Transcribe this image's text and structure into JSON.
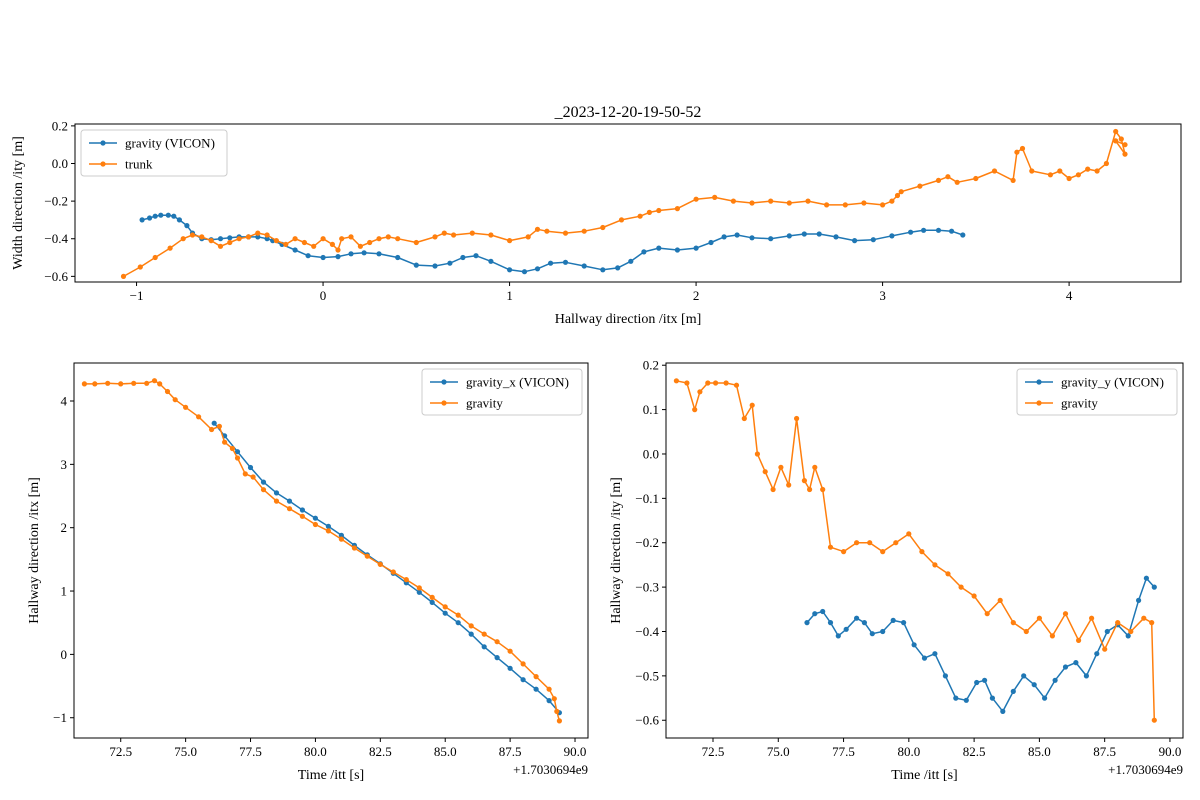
{
  "figure": {
    "suptitle": ""
  },
  "colors": {
    "series_blue": "#1f77b4",
    "series_orange": "#ff7f0e",
    "axis": "#000000"
  },
  "chart_data": [
    {
      "id": "top",
      "type": "line",
      "title": "_2023-12-20-19-50-52",
      "xlabel": "Hallway direction /itx [m]",
      "ylabel": "Width direction /ity [m]",
      "xlim": [
        -1.33,
        4.6
      ],
      "ylim": [
        -0.63,
        0.21
      ],
      "xticks": [
        -1,
        0,
        1,
        2,
        3,
        4
      ],
      "xticklabels": [
        "−1",
        "0",
        "1",
        "2",
        "3",
        "4"
      ],
      "yticks": [
        -0.6,
        -0.4,
        -0.2,
        0.0,
        0.2
      ],
      "yticklabels": [
        "−0.6",
        "−0.4",
        "−0.2",
        "0.0",
        "0.2"
      ],
      "offset_text": "",
      "legend": {
        "placement": "upper-left",
        "entries": [
          "gravity (VICON)",
          "trunk"
        ]
      },
      "series": [
        {
          "name": "gravity (VICON)",
          "color": "#1f77b4",
          "x": [
            -0.97,
            -0.93,
            -0.9,
            -0.87,
            -0.83,
            -0.8,
            -0.77,
            -0.73,
            -0.7,
            -0.65,
            -0.6,
            -0.55,
            -0.5,
            -0.45,
            -0.4,
            -0.35,
            -0.3,
            -0.27,
            -0.22,
            -0.15,
            -0.08,
            0.0,
            0.08,
            0.15,
            0.22,
            0.3,
            0.4,
            0.5,
            0.6,
            0.68,
            0.75,
            0.82,
            0.9,
            1.0,
            1.08,
            1.15,
            1.22,
            1.3,
            1.4,
            1.5,
            1.58,
            1.65,
            1.72,
            1.8,
            1.9,
            2.0,
            2.08,
            2.15,
            2.22,
            2.3,
            2.4,
            2.5,
            2.58,
            2.66,
            2.75,
            2.85,
            2.95,
            3.05,
            3.15,
            3.22,
            3.3,
            3.37,
            3.43
          ],
          "y": [
            -0.3,
            -0.29,
            -0.28,
            -0.275,
            -0.275,
            -0.28,
            -0.3,
            -0.33,
            -0.37,
            -0.4,
            -0.405,
            -0.4,
            -0.395,
            -0.39,
            -0.39,
            -0.39,
            -0.4,
            -0.41,
            -0.43,
            -0.46,
            -0.49,
            -0.5,
            -0.495,
            -0.48,
            -0.475,
            -0.48,
            -0.5,
            -0.54,
            -0.545,
            -0.53,
            -0.5,
            -0.49,
            -0.52,
            -0.565,
            -0.575,
            -0.56,
            -0.53,
            -0.525,
            -0.545,
            -0.565,
            -0.555,
            -0.52,
            -0.47,
            -0.45,
            -0.46,
            -0.45,
            -0.42,
            -0.39,
            -0.38,
            -0.395,
            -0.4,
            -0.385,
            -0.375,
            -0.375,
            -0.39,
            -0.41,
            -0.405,
            -0.385,
            -0.365,
            -0.355,
            -0.355,
            -0.36,
            -0.38
          ]
        },
        {
          "name": "trunk",
          "color": "#ff7f0e",
          "x": [
            -1.07,
            -0.98,
            -0.9,
            -0.82,
            -0.75,
            -0.7,
            -0.65,
            -0.6,
            -0.55,
            -0.5,
            -0.45,
            -0.4,
            -0.35,
            -0.3,
            -0.25,
            -0.2,
            -0.15,
            -0.1,
            -0.05,
            0.0,
            0.05,
            0.08,
            0.1,
            0.15,
            0.2,
            0.25,
            0.3,
            0.35,
            0.4,
            0.5,
            0.6,
            0.65,
            0.7,
            0.8,
            0.9,
            1.0,
            1.1,
            1.15,
            1.2,
            1.3,
            1.4,
            1.5,
            1.6,
            1.7,
            1.75,
            1.8,
            1.9,
            2.0,
            2.1,
            2.2,
            2.3,
            2.4,
            2.5,
            2.6,
            2.7,
            2.8,
            2.9,
            3.0,
            3.05,
            3.08,
            3.1,
            3.2,
            3.3,
            3.35,
            3.4,
            3.5,
            3.6,
            3.7,
            3.72,
            3.75,
            3.8,
            3.9,
            3.95,
            4.0,
            4.05,
            4.1,
            4.15,
            4.2,
            4.25,
            4.28,
            4.3,
            4.25,
            4.3
          ],
          "y": [
            -0.6,
            -0.55,
            -0.5,
            -0.45,
            -0.4,
            -0.38,
            -0.39,
            -0.41,
            -0.44,
            -0.42,
            -0.4,
            -0.39,
            -0.37,
            -0.38,
            -0.41,
            -0.43,
            -0.4,
            -0.42,
            -0.44,
            -0.4,
            -0.43,
            -0.46,
            -0.4,
            -0.39,
            -0.44,
            -0.42,
            -0.4,
            -0.39,
            -0.4,
            -0.42,
            -0.39,
            -0.37,
            -0.38,
            -0.37,
            -0.38,
            -0.41,
            -0.39,
            -0.35,
            -0.36,
            -0.37,
            -0.36,
            -0.34,
            -0.3,
            -0.28,
            -0.26,
            -0.25,
            -0.24,
            -0.19,
            -0.18,
            -0.2,
            -0.21,
            -0.2,
            -0.21,
            -0.2,
            -0.22,
            -0.22,
            -0.21,
            -0.22,
            -0.2,
            -0.17,
            -0.15,
            -0.12,
            -0.09,
            -0.07,
            -0.1,
            -0.08,
            -0.04,
            -0.09,
            0.06,
            0.08,
            -0.04,
            -0.06,
            -0.04,
            -0.08,
            -0.06,
            -0.03,
            -0.04,
            0.0,
            0.17,
            0.13,
            0.05,
            0.12,
            0.1
          ]
        }
      ]
    },
    {
      "id": "bottom-left",
      "type": "line",
      "title": "",
      "xlabel": "Time /itt [s]",
      "ylabel": "Hallway direction /itx [m]",
      "xlim": [
        70.7,
        90.5
      ],
      "ylim": [
        -1.32,
        4.6
      ],
      "xticks": [
        72.5,
        75.0,
        77.5,
        80.0,
        82.5,
        85.0,
        87.5,
        90.0
      ],
      "xticklabels": [
        "72.5",
        "75.0",
        "77.5",
        "80.0",
        "82.5",
        "85.0",
        "87.5",
        "90.0"
      ],
      "yticks": [
        -1,
        0,
        1,
        2,
        3,
        4
      ],
      "yticklabels": [
        "−1",
        "0",
        "1",
        "2",
        "3",
        "4"
      ],
      "offset_text": "+1.7030694e9",
      "legend": {
        "placement": "upper-right",
        "entries": [
          "gravity_x (VICON)",
          "gravity"
        ]
      },
      "series": [
        {
          "name": "gravity_x (VICON)",
          "color": "#1f77b4",
          "x": [
            76.1,
            76.5,
            77.0,
            77.5,
            78.0,
            78.5,
            79.0,
            79.5,
            80.0,
            80.5,
            81.0,
            81.5,
            82.0,
            82.5,
            83.0,
            83.5,
            84.0,
            84.5,
            85.0,
            85.5,
            86.0,
            86.5,
            87.0,
            87.5,
            88.0,
            88.5,
            89.0,
            89.4
          ],
          "y": [
            3.65,
            3.45,
            3.2,
            2.95,
            2.72,
            2.55,
            2.42,
            2.28,
            2.15,
            2.02,
            1.88,
            1.72,
            1.57,
            1.43,
            1.28,
            1.13,
            0.98,
            0.82,
            0.65,
            0.5,
            0.32,
            0.12,
            -0.05,
            -0.22,
            -0.4,
            -0.55,
            -0.73,
            -0.92
          ]
        },
        {
          "name": "gravity",
          "color": "#ff7f0e",
          "x": [
            71.1,
            71.5,
            72.0,
            72.5,
            73.0,
            73.5,
            73.8,
            74.0,
            74.3,
            74.6,
            75.0,
            75.5,
            76.0,
            76.3,
            76.5,
            76.8,
            77.0,
            77.3,
            77.6,
            78.0,
            78.5,
            79.0,
            79.5,
            80.0,
            80.5,
            81.0,
            81.5,
            82.0,
            82.5,
            83.0,
            83.5,
            84.0,
            84.5,
            85.0,
            85.5,
            86.0,
            86.5,
            87.0,
            87.5,
            88.0,
            88.5,
            89.0,
            89.2,
            89.3,
            89.4
          ],
          "y": [
            4.27,
            4.27,
            4.28,
            4.27,
            4.28,
            4.28,
            4.32,
            4.27,
            4.15,
            4.02,
            3.9,
            3.75,
            3.55,
            3.6,
            3.35,
            3.25,
            3.1,
            2.85,
            2.8,
            2.6,
            2.42,
            2.3,
            2.18,
            2.05,
            1.95,
            1.82,
            1.68,
            1.55,
            1.42,
            1.3,
            1.18,
            1.05,
            0.9,
            0.75,
            0.62,
            0.45,
            0.32,
            0.2,
            0.05,
            -0.15,
            -0.35,
            -0.55,
            -0.7,
            -0.9,
            -1.05
          ]
        }
      ]
    },
    {
      "id": "bottom-right",
      "type": "line",
      "title": "",
      "xlabel": "Time /itt [s]",
      "ylabel": "Hallway direction /ity [m]",
      "xlim": [
        70.7,
        90.5
      ],
      "ylim": [
        -0.64,
        0.205
      ],
      "xticks": [
        72.5,
        75.0,
        77.5,
        80.0,
        82.5,
        85.0,
        87.5,
        90.0
      ],
      "xticklabels": [
        "72.5",
        "75.0",
        "77.5",
        "80.0",
        "82.5",
        "85.0",
        "87.5",
        "90.0"
      ],
      "yticks": [
        -0.6,
        -0.5,
        -0.4,
        -0.3,
        -0.2,
        -0.1,
        0.0,
        0.1,
        0.2
      ],
      "yticklabels": [
        "−0.6",
        "−0.5",
        "−0.4",
        "−0.3",
        "−0.2",
        "−0.1",
        "0.0",
        "0.1",
        "0.2"
      ],
      "offset_text": "+1.7030694e9",
      "legend": {
        "placement": "upper-right",
        "entries": [
          "gravity_y (VICON)",
          "gravity"
        ]
      },
      "series": [
        {
          "name": "gravity_y (VICON)",
          "color": "#1f77b4",
          "x": [
            76.1,
            76.4,
            76.7,
            77.0,
            77.3,
            77.6,
            78.0,
            78.3,
            78.6,
            79.0,
            79.4,
            79.8,
            80.2,
            80.6,
            81.0,
            81.4,
            81.8,
            82.2,
            82.6,
            82.9,
            83.2,
            83.6,
            84.0,
            84.4,
            84.8,
            85.2,
            85.6,
            86.0,
            86.4,
            86.8,
            87.2,
            87.6,
            88.0,
            88.4,
            88.8,
            89.1,
            89.4
          ],
          "y": [
            -0.38,
            -0.36,
            -0.355,
            -0.38,
            -0.41,
            -0.395,
            -0.37,
            -0.38,
            -0.405,
            -0.4,
            -0.375,
            -0.38,
            -0.43,
            -0.46,
            -0.45,
            -0.5,
            -0.55,
            -0.555,
            -0.515,
            -0.51,
            -0.55,
            -0.58,
            -0.535,
            -0.5,
            -0.52,
            -0.55,
            -0.51,
            -0.48,
            -0.47,
            -0.5,
            -0.45,
            -0.4,
            -0.385,
            -0.41,
            -0.33,
            -0.28,
            -0.3
          ]
        },
        {
          "name": "gravity",
          "color": "#ff7f0e",
          "x": [
            71.1,
            71.5,
            71.8,
            72.0,
            72.3,
            72.6,
            73.0,
            73.4,
            73.7,
            74.0,
            74.2,
            74.5,
            74.8,
            75.1,
            75.4,
            75.7,
            76.0,
            76.2,
            76.4,
            76.7,
            77.0,
            77.5,
            78.0,
            78.5,
            79.0,
            79.5,
            80.0,
            80.5,
            81.0,
            81.5,
            82.0,
            82.5,
            83.0,
            83.5,
            84.0,
            84.5,
            85.0,
            85.5,
            86.0,
            86.5,
            87.0,
            87.5,
            88.0,
            88.5,
            89.0,
            89.3,
            89.4
          ],
          "y": [
            0.165,
            0.16,
            0.1,
            0.14,
            0.16,
            0.16,
            0.16,
            0.155,
            0.08,
            0.11,
            0.0,
            -0.04,
            -0.08,
            -0.03,
            -0.07,
            0.08,
            -0.06,
            -0.08,
            -0.03,
            -0.08,
            -0.21,
            -0.22,
            -0.2,
            -0.2,
            -0.22,
            -0.2,
            -0.18,
            -0.22,
            -0.25,
            -0.27,
            -0.3,
            -0.32,
            -0.36,
            -0.33,
            -0.38,
            -0.4,
            -0.37,
            -0.41,
            -0.36,
            -0.42,
            -0.37,
            -0.44,
            -0.38,
            -0.4,
            -0.37,
            -0.38,
            -0.6
          ]
        }
      ]
    }
  ]
}
